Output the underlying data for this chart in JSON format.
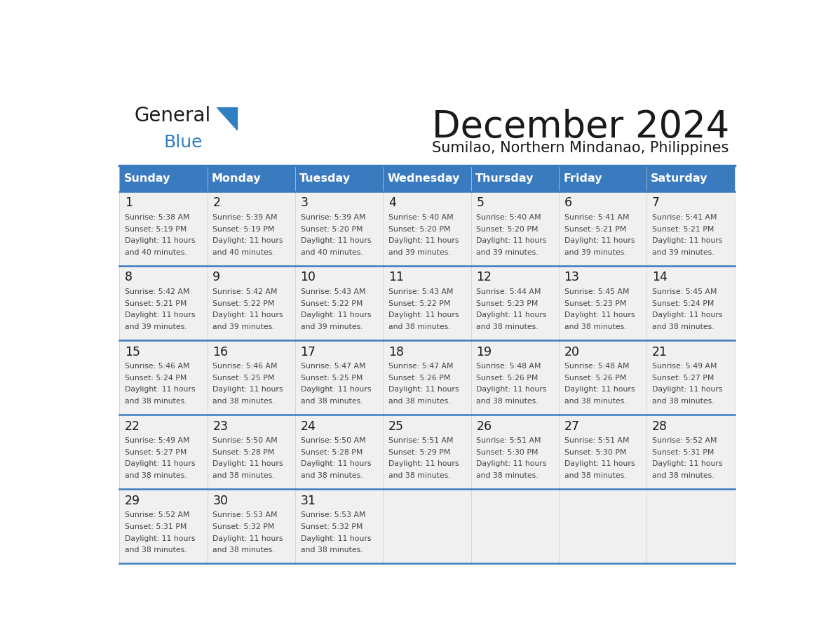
{
  "title": "December 2024",
  "subtitle": "Sumilao, Northern Mindanao, Philippines",
  "header_color": "#3a7bbf",
  "header_text_color": "#ffffff",
  "cell_bg_color": "#f0f0f0",
  "border_color": "#3a7bbf",
  "separator_color": "#3a7bbf",
  "day_headers": [
    "Sunday",
    "Monday",
    "Tuesday",
    "Wednesday",
    "Thursday",
    "Friday",
    "Saturday"
  ],
  "days": [
    {
      "day": 1,
      "col": 0,
      "row": 0,
      "sunrise": "5:38 AM",
      "sunset": "5:19 PM",
      "daylight_line1": "Daylight: 11 hours",
      "daylight_line2": "and 40 minutes."
    },
    {
      "day": 2,
      "col": 1,
      "row": 0,
      "sunrise": "5:39 AM",
      "sunset": "5:19 PM",
      "daylight_line1": "Daylight: 11 hours",
      "daylight_line2": "and 40 minutes."
    },
    {
      "day": 3,
      "col": 2,
      "row": 0,
      "sunrise": "5:39 AM",
      "sunset": "5:20 PM",
      "daylight_line1": "Daylight: 11 hours",
      "daylight_line2": "and 40 minutes."
    },
    {
      "day": 4,
      "col": 3,
      "row": 0,
      "sunrise": "5:40 AM",
      "sunset": "5:20 PM",
      "daylight_line1": "Daylight: 11 hours",
      "daylight_line2": "and 39 minutes."
    },
    {
      "day": 5,
      "col": 4,
      "row": 0,
      "sunrise": "5:40 AM",
      "sunset": "5:20 PM",
      "daylight_line1": "Daylight: 11 hours",
      "daylight_line2": "and 39 minutes."
    },
    {
      "day": 6,
      "col": 5,
      "row": 0,
      "sunrise": "5:41 AM",
      "sunset": "5:21 PM",
      "daylight_line1": "Daylight: 11 hours",
      "daylight_line2": "and 39 minutes."
    },
    {
      "day": 7,
      "col": 6,
      "row": 0,
      "sunrise": "5:41 AM",
      "sunset": "5:21 PM",
      "daylight_line1": "Daylight: 11 hours",
      "daylight_line2": "and 39 minutes."
    },
    {
      "day": 8,
      "col": 0,
      "row": 1,
      "sunrise": "5:42 AM",
      "sunset": "5:21 PM",
      "daylight_line1": "Daylight: 11 hours",
      "daylight_line2": "and 39 minutes."
    },
    {
      "day": 9,
      "col": 1,
      "row": 1,
      "sunrise": "5:42 AM",
      "sunset": "5:22 PM",
      "daylight_line1": "Daylight: 11 hours",
      "daylight_line2": "and 39 minutes."
    },
    {
      "day": 10,
      "col": 2,
      "row": 1,
      "sunrise": "5:43 AM",
      "sunset": "5:22 PM",
      "daylight_line1": "Daylight: 11 hours",
      "daylight_line2": "and 39 minutes."
    },
    {
      "day": 11,
      "col": 3,
      "row": 1,
      "sunrise": "5:43 AM",
      "sunset": "5:22 PM",
      "daylight_line1": "Daylight: 11 hours",
      "daylight_line2": "and 38 minutes."
    },
    {
      "day": 12,
      "col": 4,
      "row": 1,
      "sunrise": "5:44 AM",
      "sunset": "5:23 PM",
      "daylight_line1": "Daylight: 11 hours",
      "daylight_line2": "and 38 minutes."
    },
    {
      "day": 13,
      "col": 5,
      "row": 1,
      "sunrise": "5:45 AM",
      "sunset": "5:23 PM",
      "daylight_line1": "Daylight: 11 hours",
      "daylight_line2": "and 38 minutes."
    },
    {
      "day": 14,
      "col": 6,
      "row": 1,
      "sunrise": "5:45 AM",
      "sunset": "5:24 PM",
      "daylight_line1": "Daylight: 11 hours",
      "daylight_line2": "and 38 minutes."
    },
    {
      "day": 15,
      "col": 0,
      "row": 2,
      "sunrise": "5:46 AM",
      "sunset": "5:24 PM",
      "daylight_line1": "Daylight: 11 hours",
      "daylight_line2": "and 38 minutes."
    },
    {
      "day": 16,
      "col": 1,
      "row": 2,
      "sunrise": "5:46 AM",
      "sunset": "5:25 PM",
      "daylight_line1": "Daylight: 11 hours",
      "daylight_line2": "and 38 minutes."
    },
    {
      "day": 17,
      "col": 2,
      "row": 2,
      "sunrise": "5:47 AM",
      "sunset": "5:25 PM",
      "daylight_line1": "Daylight: 11 hours",
      "daylight_line2": "and 38 minutes."
    },
    {
      "day": 18,
      "col": 3,
      "row": 2,
      "sunrise": "5:47 AM",
      "sunset": "5:26 PM",
      "daylight_line1": "Daylight: 11 hours",
      "daylight_line2": "and 38 minutes."
    },
    {
      "day": 19,
      "col": 4,
      "row": 2,
      "sunrise": "5:48 AM",
      "sunset": "5:26 PM",
      "daylight_line1": "Daylight: 11 hours",
      "daylight_line2": "and 38 minutes."
    },
    {
      "day": 20,
      "col": 5,
      "row": 2,
      "sunrise": "5:48 AM",
      "sunset": "5:26 PM",
      "daylight_line1": "Daylight: 11 hours",
      "daylight_line2": "and 38 minutes."
    },
    {
      "day": 21,
      "col": 6,
      "row": 2,
      "sunrise": "5:49 AM",
      "sunset": "5:27 PM",
      "daylight_line1": "Daylight: 11 hours",
      "daylight_line2": "and 38 minutes."
    },
    {
      "day": 22,
      "col": 0,
      "row": 3,
      "sunrise": "5:49 AM",
      "sunset": "5:27 PM",
      "daylight_line1": "Daylight: 11 hours",
      "daylight_line2": "and 38 minutes."
    },
    {
      "day": 23,
      "col": 1,
      "row": 3,
      "sunrise": "5:50 AM",
      "sunset": "5:28 PM",
      "daylight_line1": "Daylight: 11 hours",
      "daylight_line2": "and 38 minutes."
    },
    {
      "day": 24,
      "col": 2,
      "row": 3,
      "sunrise": "5:50 AM",
      "sunset": "5:28 PM",
      "daylight_line1": "Daylight: 11 hours",
      "daylight_line2": "and 38 minutes."
    },
    {
      "day": 25,
      "col": 3,
      "row": 3,
      "sunrise": "5:51 AM",
      "sunset": "5:29 PM",
      "daylight_line1": "Daylight: 11 hours",
      "daylight_line2": "and 38 minutes."
    },
    {
      "day": 26,
      "col": 4,
      "row": 3,
      "sunrise": "5:51 AM",
      "sunset": "5:30 PM",
      "daylight_line1": "Daylight: 11 hours",
      "daylight_line2": "and 38 minutes."
    },
    {
      "day": 27,
      "col": 5,
      "row": 3,
      "sunrise": "5:51 AM",
      "sunset": "5:30 PM",
      "daylight_line1": "Daylight: 11 hours",
      "daylight_line2": "and 38 minutes."
    },
    {
      "day": 28,
      "col": 6,
      "row": 3,
      "sunrise": "5:52 AM",
      "sunset": "5:31 PM",
      "daylight_line1": "Daylight: 11 hours",
      "daylight_line2": "and 38 minutes."
    },
    {
      "day": 29,
      "col": 0,
      "row": 4,
      "sunrise": "5:52 AM",
      "sunset": "5:31 PM",
      "daylight_line1": "Daylight: 11 hours",
      "daylight_line2": "and 38 minutes."
    },
    {
      "day": 30,
      "col": 1,
      "row": 4,
      "sunrise": "5:53 AM",
      "sunset": "5:32 PM",
      "daylight_line1": "Daylight: 11 hours",
      "daylight_line2": "and 38 minutes."
    },
    {
      "day": 31,
      "col": 2,
      "row": 4,
      "sunrise": "5:53 AM",
      "sunset": "5:32 PM",
      "daylight_line1": "Daylight: 11 hours",
      "daylight_line2": "and 38 minutes."
    }
  ],
  "num_rows": 5,
  "logo_general_color": "#1a1a1a",
  "logo_blue_color": "#2e7fc1",
  "text_color": "#444444",
  "day_num_color": "#1a1a1a"
}
